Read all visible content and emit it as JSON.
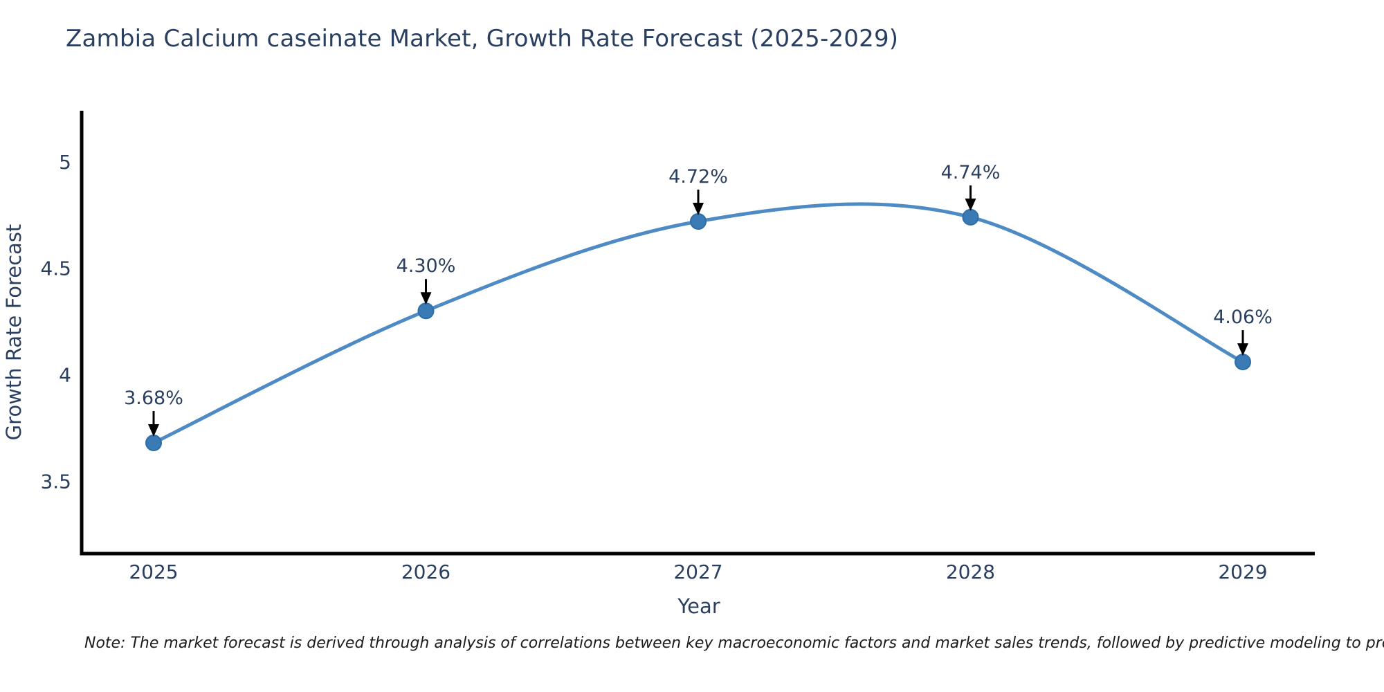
{
  "chart_data": {
    "type": "line",
    "title": "Zambia Calcium caseinate Market, Growth Rate Forecast (2025-2029)",
    "xlabel": "Year",
    "ylabel": "Growth Rate Forecast",
    "x": [
      2025,
      2026,
      2027,
      2028,
      2029
    ],
    "y": [
      3.68,
      4.3,
      4.72,
      4.74,
      4.06
    ],
    "point_labels": [
      "3.68%",
      "4.30%",
      "4.72%",
      "4.74%",
      "4.06%"
    ],
    "yticks": [
      "3.5",
      "4",
      "4.5",
      "5"
    ],
    "ytick_values": [
      3.5,
      4.0,
      4.5,
      5.0
    ],
    "ylim": [
      3.16,
      5.24
    ],
    "grid": false,
    "legend": "none",
    "smoothing": "spline",
    "colors": {
      "line": "#4e8bc4",
      "marker_fill": "#3a7bb6",
      "marker_stroke": "#2f6da6",
      "axis": "#000000",
      "text": "#2a3f5f",
      "annotation_arrow": "#000000"
    }
  },
  "footnote": {
    "text": "Note: The market forecast is derived through analysis of correlations between key macroeconomic factors and market sales trends, followed by predictive modeling to project future sales trends."
  }
}
